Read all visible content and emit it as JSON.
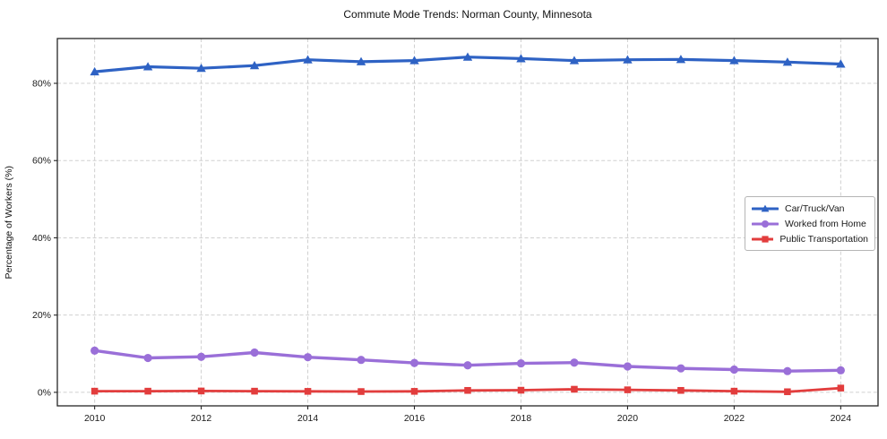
{
  "title": "Commute Mode Trends: Norman County, Minnesota",
  "chart_data": {
    "type": "line",
    "title": "Commute Mode Trends: Norman County, Minnesota",
    "xlabel": "",
    "ylabel": "Percentage of Workers (%)",
    "x": [
      2010,
      2011,
      2012,
      2013,
      2014,
      2015,
      2016,
      2017,
      2018,
      2019,
      2020,
      2021,
      2022,
      2023,
      2024
    ],
    "series": [
      {
        "name": "Car/Truck/Van",
        "color": "#2e62c4",
        "marker": "triangle",
        "values": [
          83.0,
          84.3,
          83.9,
          84.6,
          86.1,
          85.6,
          85.9,
          86.8,
          86.4,
          85.9,
          86.1,
          86.2,
          85.9,
          85.5,
          85.0
        ]
      },
      {
        "name": "Worked from Home",
        "color": "#9a6fd8",
        "marker": "circle",
        "values": [
          10.8,
          8.9,
          9.2,
          10.3,
          9.1,
          8.4,
          7.6,
          7.0,
          7.5,
          7.7,
          6.7,
          6.2,
          5.9,
          5.5,
          5.7
        ]
      },
      {
        "name": "Public Transportation",
        "color": "#e23d3d",
        "marker": "square",
        "values": [
          0.3,
          0.3,
          0.35,
          0.3,
          0.25,
          0.2,
          0.25,
          0.5,
          0.55,
          0.8,
          0.65,
          0.5,
          0.3,
          0.15,
          1.1
        ]
      }
    ],
    "xticks": [
      2010,
      2012,
      2014,
      2016,
      2018,
      2020,
      2022,
      2024
    ],
    "yticks": [
      0,
      20,
      40,
      60,
      80
    ],
    "ytick_labels": [
      "0%",
      "20%",
      "40%",
      "60%",
      "80%"
    ],
    "xlim": [
      2009.3,
      2024.7
    ],
    "ylim": [
      -3.5,
      91.6
    ],
    "grid": true,
    "legend_position": "center right"
  }
}
